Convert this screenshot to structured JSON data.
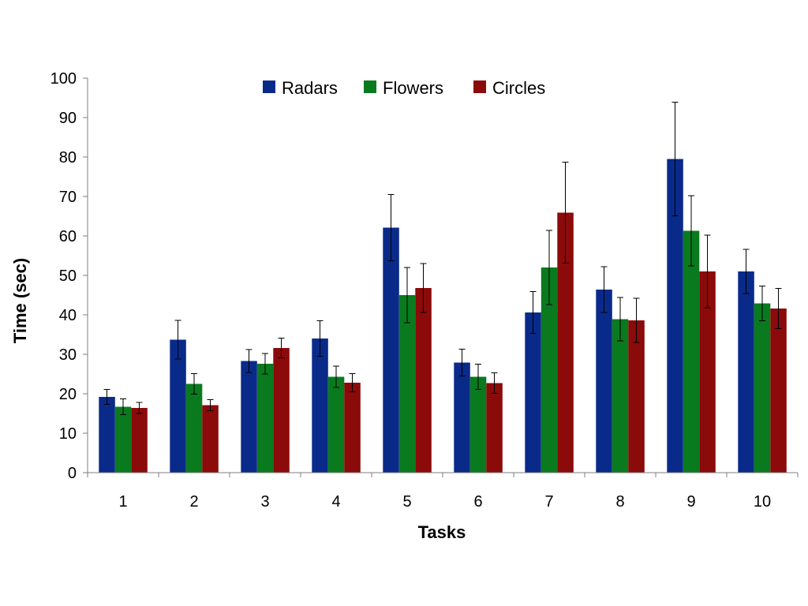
{
  "chart_data": {
    "type": "bar",
    "title": "",
    "xlabel": "Tasks",
    "ylabel": "Time (sec)",
    "ylim": [
      0,
      100
    ],
    "yticks": [
      0,
      10,
      20,
      30,
      40,
      50,
      60,
      70,
      80,
      90,
      100
    ],
    "grid": false,
    "legend_position": "top-center",
    "categories": [
      "1",
      "2",
      "3",
      "4",
      "5",
      "6",
      "7",
      "8",
      "9",
      "10"
    ],
    "series": [
      {
        "name": "Radars",
        "color": "#0a2a8a",
        "values": [
          19.2,
          33.7,
          28.3,
          34.0,
          62.1,
          27.9,
          40.6,
          46.4,
          79.5,
          51.0
        ],
        "error": [
          1.9,
          4.9,
          2.9,
          4.5,
          8.4,
          3.4,
          5.3,
          5.8,
          14.4,
          5.6
        ]
      },
      {
        "name": "Flowers",
        "color": "#0a7a1f",
        "values": [
          16.7,
          22.5,
          27.6,
          24.3,
          45.0,
          24.3,
          52.0,
          38.9,
          61.3,
          42.9
        ],
        "error": [
          2.0,
          2.6,
          2.6,
          2.7,
          7.0,
          3.2,
          9.4,
          5.5,
          8.9,
          4.4
        ]
      },
      {
        "name": "Circles",
        "color": "#8b0a0a",
        "values": [
          16.4,
          17.1,
          31.6,
          22.8,
          46.8,
          22.7,
          65.9,
          38.6,
          51.0,
          41.6
        ],
        "error": [
          1.4,
          1.4,
          2.5,
          2.3,
          6.2,
          2.6,
          12.8,
          5.6,
          9.2,
          5.1
        ]
      }
    ]
  }
}
